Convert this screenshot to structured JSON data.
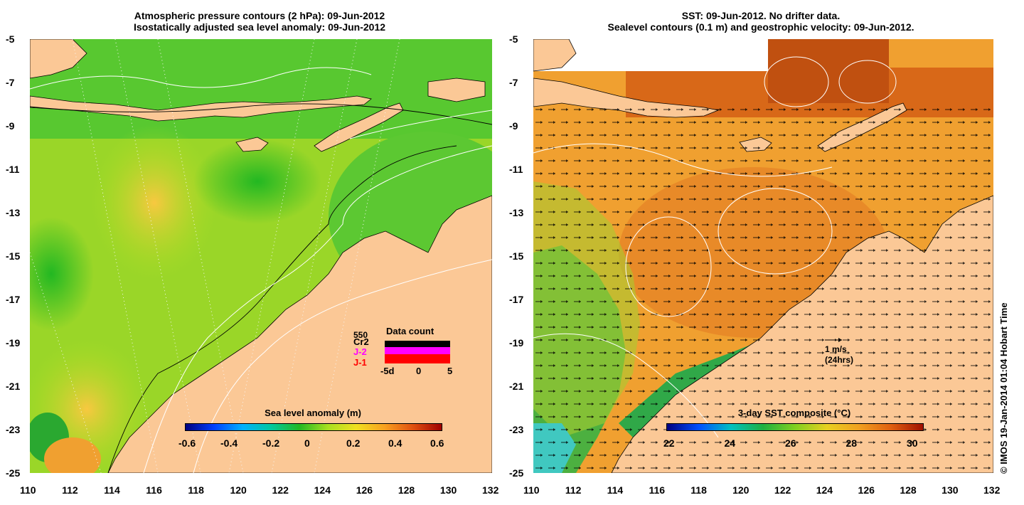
{
  "left_panel": {
    "title_line1": "Atmospheric pressure contours (2 hPa): 09-Jun-2012",
    "title_line2": "Isostatically adjusted sea level anomaly: 09-Jun-2012",
    "colorbar": {
      "label": "Sea level anomaly (m)",
      "ticks": [
        "-0.6",
        "-0.4",
        "-0.2",
        "0",
        "0.2",
        "0.4",
        "0.6"
      ]
    },
    "data_count": {
      "title": "Data count",
      "max_label": "550",
      "sat1": "Cr2",
      "sat2": "J-2",
      "sat3": "J-1",
      "x_ticks": [
        "-5d",
        "0",
        "5"
      ],
      "colors": {
        "Cr2": "#000000",
        "J-2": "#ff00ff",
        "J-1": "#ff0000"
      }
    }
  },
  "right_panel": {
    "title_line1": "SST: 09-Jun-2012. No drifter data.",
    "title_line2": "Sealevel contours (0.1 m) and geostrophic velocity: 09-Jun-2012.",
    "colorbar": {
      "label": "3-day SST composite (°C)",
      "ticks": [
        "22",
        "24",
        "26",
        "28",
        "30"
      ]
    },
    "velocity_scale": {
      "label": "1 m/s",
      "sublabel": "(24hrs)"
    }
  },
  "axes": {
    "lat_ticks": [
      "-5",
      "-7",
      "-9",
      "-11",
      "-13",
      "-15",
      "-17",
      "-19",
      "-21",
      "-23",
      "-25"
    ],
    "lon_ticks": [
      "110",
      "112",
      "114",
      "116",
      "118",
      "120",
      "122",
      "124",
      "126",
      "128",
      "130",
      "132"
    ]
  },
  "credit": "© IMOS 19-Jan-2014 01:04 Hobart Time",
  "colors": {
    "land": "#fbc896",
    "sla_scale": [
      "#00007f",
      "#0060ff",
      "#00c8a0",
      "#22b822",
      "#a8e020",
      "#f0e020",
      "#f8a020",
      "#e05010",
      "#a00000"
    ],
    "sst_scale": [
      "#000080",
      "#0050ff",
      "#00c0c0",
      "#20b040",
      "#80d020",
      "#e8d020",
      "#f0a020",
      "#e06010",
      "#a01000"
    ]
  }
}
